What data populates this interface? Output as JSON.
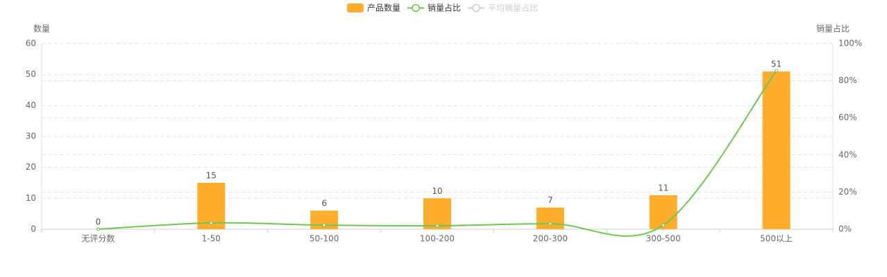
{
  "chart_data": {
    "type": "bar-line",
    "categories": [
      "无评分数",
      "1-50",
      "50-100",
      "100-200",
      "200-300",
      "300-500",
      "500以上"
    ],
    "series": [
      {
        "name": "产品数量",
        "type": "bar",
        "color": "#ffad2d",
        "values": [
          0,
          15,
          6,
          10,
          7,
          11,
          51
        ]
      },
      {
        "name": "销量占比",
        "type": "line",
        "axis": "y2",
        "color": "#6cc750",
        "values": [
          0,
          3.4,
          2.2,
          1.9,
          3.0,
          2.2,
          85.4
        ]
      },
      {
        "name": "平均销量占比",
        "type": "line",
        "axis": "y2",
        "color": "#cccccc",
        "hidden": true
      }
    ],
    "ylabel": "数量",
    "y2label": "销量占比",
    "ylim": [
      0,
      60
    ],
    "yticks": [
      0,
      10,
      20,
      30,
      40,
      50,
      60
    ],
    "y2lim": [
      0,
      100
    ],
    "y2ticks": [
      {
        "value": 0,
        "label": "0%"
      },
      {
        "value": 20,
        "label": "20%"
      },
      {
        "value": 40,
        "label": "40%"
      },
      {
        "value": 60,
        "label": "60%"
      },
      {
        "value": 80,
        "label": "80%"
      },
      {
        "value": 100,
        "label": "100%"
      }
    ],
    "grid": true,
    "legend": "top"
  }
}
